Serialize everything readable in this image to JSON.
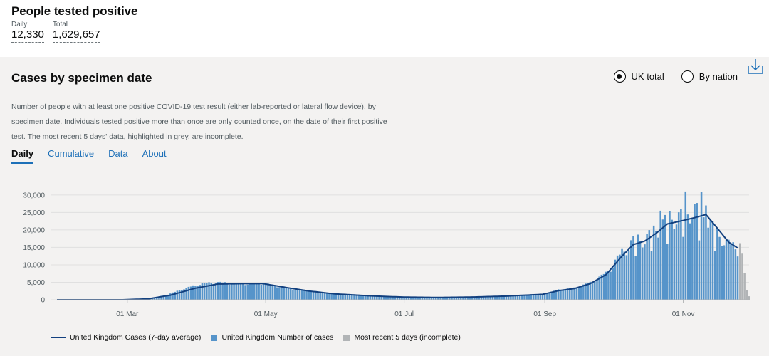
{
  "headline": {
    "title": "People tested positive",
    "metrics": [
      {
        "label": "Daily",
        "value": "12,330"
      },
      {
        "label": "Total",
        "value": "1,629,657"
      }
    ]
  },
  "panel": {
    "title": "Cases by specimen date",
    "download_icon": "download-icon",
    "radios": [
      {
        "label": "UK total",
        "checked": true
      },
      {
        "label": "By nation",
        "checked": false
      }
    ],
    "description": "Number of people with at least one positive COVID-19 test result (either lab-reported or lateral flow device), by specimen date. Individuals tested positive more than once are only counted once, on the date of their first positive test. The most recent 5 days' data, highlighted in grey, are incomplete.",
    "tabs": [
      {
        "label": "Daily",
        "active": true
      },
      {
        "label": "Cumulative",
        "active": false
      },
      {
        "label": "Data",
        "active": false
      },
      {
        "label": "About",
        "active": false
      }
    ]
  },
  "colors": {
    "bar": "#5694ca",
    "incomplete": "#b1b4b6",
    "line": "#12407f",
    "grid": "#e0e0e0",
    "link": "#1d70b8"
  },
  "chart_data": {
    "type": "bar",
    "x_start": "2020-01-30",
    "x_end": "2020-11-30",
    "ylim": [
      0,
      32000
    ],
    "yticks": [
      0,
      5000,
      10000,
      15000,
      20000,
      25000,
      30000
    ],
    "ytick_labels": [
      "0",
      "5,000",
      "10,000",
      "15,000",
      "20,000",
      "25,000",
      "30,000"
    ],
    "xticks": [
      "2020-03-01",
      "2020-05-01",
      "2020-07-01",
      "2020-09-01",
      "2020-11-01"
    ],
    "xtick_labels": [
      "01 Mar",
      "01 May",
      "01 Jul",
      "01 Sep",
      "01 Nov"
    ],
    "incomplete_days": 5,
    "daily_anchors": [
      [
        "2020-01-30",
        2
      ],
      [
        "2020-02-28",
        10
      ],
      [
        "2020-03-05",
        80
      ],
      [
        "2020-03-12",
        500
      ],
      [
        "2020-03-19",
        1500
      ],
      [
        "2020-03-26",
        3100
      ],
      [
        "2020-04-02",
        4400
      ],
      [
        "2020-04-09",
        4900
      ],
      [
        "2020-04-16",
        4600
      ],
      [
        "2020-04-23",
        4500
      ],
      [
        "2020-04-30",
        4600
      ],
      [
        "2020-05-07",
        3700
      ],
      [
        "2020-05-14",
        3000
      ],
      [
        "2020-05-21",
        2500
      ],
      [
        "2020-05-31",
        1700
      ],
      [
        "2020-06-15",
        1200
      ],
      [
        "2020-06-30",
        800
      ],
      [
        "2020-07-15",
        650
      ],
      [
        "2020-07-31",
        800
      ],
      [
        "2020-08-15",
        1100
      ],
      [
        "2020-08-31",
        1500
      ],
      [
        "2020-09-07",
        2800
      ],
      [
        "2020-09-14",
        3300
      ],
      [
        "2020-09-21",
        4800
      ],
      [
        "2020-09-28",
        7500
      ],
      [
        "2020-10-05",
        13000
      ],
      [
        "2020-10-10",
        16500
      ],
      [
        "2020-10-15",
        17000
      ],
      [
        "2020-10-20",
        19500
      ],
      [
        "2020-10-25",
        22500
      ],
      [
        "2020-11-01",
        23500
      ],
      [
        "2020-11-06",
        25500
      ],
      [
        "2020-11-11",
        23000
      ],
      [
        "2020-11-16",
        18500
      ],
      [
        "2020-11-21",
        15500
      ],
      [
        "2020-11-25",
        14000
      ]
    ],
    "daily_peaks": [
      [
        "2020-10-22",
        25500
      ],
      [
        "2020-11-02",
        31000
      ],
      [
        "2020-11-09",
        30800
      ],
      [
        "2020-11-11",
        27000
      ]
    ],
    "daily_troughs": [
      [
        "2020-10-11",
        12500
      ],
      [
        "2020-10-18",
        14000
      ],
      [
        "2020-10-25",
        16000
      ],
      [
        "2020-11-01",
        18000
      ],
      [
        "2020-11-08",
        17000
      ],
      [
        "2020-11-15",
        14000
      ]
    ],
    "incomplete_values": [
      16200,
      13200,
      7600,
      2800,
      1000
    ],
    "avg_anchors": [
      [
        "2020-01-30",
        0
      ],
      [
        "2020-02-28",
        10
      ],
      [
        "2020-03-10",
        250
      ],
      [
        "2020-03-20",
        1300
      ],
      [
        "2020-03-31",
        3300
      ],
      [
        "2020-04-10",
        4500
      ],
      [
        "2020-04-20",
        4600
      ],
      [
        "2020-04-30",
        4600
      ],
      [
        "2020-05-10",
        3500
      ],
      [
        "2020-05-20",
        2500
      ],
      [
        "2020-05-31",
        1700
      ],
      [
        "2020-06-15",
        1150
      ],
      [
        "2020-06-30",
        780
      ],
      [
        "2020-07-15",
        650
      ],
      [
        "2020-07-31",
        780
      ],
      [
        "2020-08-15",
        1050
      ],
      [
        "2020-08-31",
        1550
      ],
      [
        "2020-09-07",
        2600
      ],
      [
        "2020-09-14",
        3200
      ],
      [
        "2020-09-21",
        4600
      ],
      [
        "2020-09-28",
        7200
      ],
      [
        "2020-10-05",
        12500
      ],
      [
        "2020-10-10",
        15800
      ],
      [
        "2020-10-15",
        16800
      ],
      [
        "2020-10-20",
        19000
      ],
      [
        "2020-10-25",
        21700
      ],
      [
        "2020-11-01",
        22700
      ],
      [
        "2020-11-06",
        23500
      ],
      [
        "2020-11-11",
        24400
      ],
      [
        "2020-11-16",
        20500
      ],
      [
        "2020-11-21",
        16500
      ],
      [
        "2020-11-25",
        14800
      ]
    ],
    "legend": [
      {
        "label": "United Kingdom Cases (7-day average)",
        "kind": "line"
      },
      {
        "label": "United Kingdom Number of cases",
        "kind": "bar"
      },
      {
        "label": "Most recent 5 days (incomplete)",
        "kind": "incomplete"
      }
    ]
  }
}
